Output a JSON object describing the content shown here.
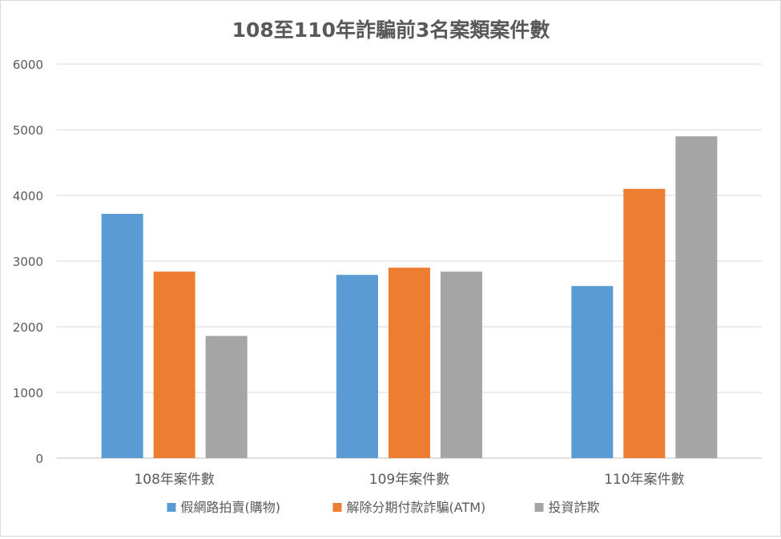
{
  "chart_data": {
    "type": "bar",
    "title": "108至110年詐騙前3名案類案件數",
    "categories": [
      "108年案件數",
      "109年案件數",
      "110年案件數"
    ],
    "series": [
      {
        "name": "假網路拍賣(購物)",
        "color": "#5b9bd5",
        "values": [
          3720,
          2790,
          2620
        ]
      },
      {
        "name": "解除分期付款詐騙(ATM)",
        "color": "#ed7d31",
        "values": [
          2840,
          2900,
          4100
        ]
      },
      {
        "name": "投資詐欺",
        "color": "#a5a5a5",
        "values": [
          1860,
          2840,
          4900
        ]
      }
    ],
    "ylim": [
      0,
      6000
    ],
    "yticks": [
      0,
      1000,
      2000,
      3000,
      4000,
      5000,
      6000
    ],
    "grid": true,
    "legend_position": "bottom"
  }
}
